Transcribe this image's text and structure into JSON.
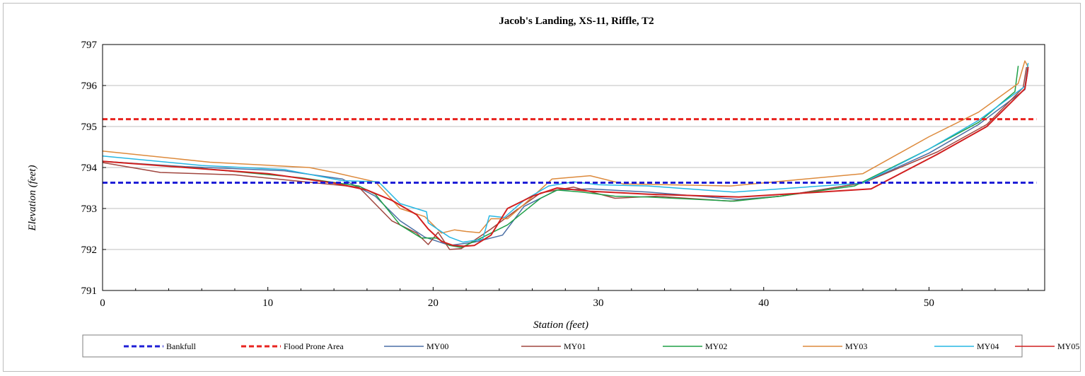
{
  "chart_data": {
    "type": "line",
    "title": "Jacob's Landing, XS-11, Riffle, T2",
    "xlabel": "Station (feet)",
    "ylabel": "Elevation (feet)",
    "xlim": [
      0,
      57
    ],
    "ylim": [
      791,
      797
    ],
    "xticks": [
      0,
      10,
      20,
      30,
      40,
      50
    ],
    "yticks": [
      791,
      792,
      793,
      794,
      795,
      796,
      797
    ],
    "grid": "horizontal",
    "legend_position": "bottom",
    "series": [
      {
        "name": "Bankfull",
        "color": "#1f1fd6",
        "dash": true,
        "width": 3,
        "x": [
          0,
          56.5
        ],
        "y": [
          793.63,
          793.63
        ]
      },
      {
        "name": "Flood Prone Area",
        "color": "#e8231f",
        "dash": true,
        "width": 3,
        "x": [
          0,
          56.5
        ],
        "y": [
          795.18,
          795.18
        ]
      },
      {
        "name": "MY00",
        "color": "#4a6fa5",
        "dash": false,
        "width": 1.5,
        "x": [
          0,
          5,
          11,
          14.5,
          16.5,
          18,
          19.5,
          21,
          22.5,
          24.2,
          25.5,
          27.5,
          29.5,
          33,
          38.5,
          41,
          46,
          50,
          53,
          55.8,
          56
        ],
        "y": [
          794.15,
          794.02,
          793.92,
          793.72,
          793.3,
          792.7,
          792.3,
          792.1,
          792.18,
          792.35,
          793.05,
          793.45,
          793.48,
          793.4,
          793.22,
          793.3,
          793.62,
          794.35,
          795.05,
          795.9,
          796.4
        ]
      },
      {
        "name": "MY01",
        "color": "#a0463f",
        "dash": false,
        "width": 1.5,
        "x": [
          0,
          3.5,
          8,
          13,
          15.5,
          17.5,
          19,
          19.7,
          20.3,
          21,
          21.7,
          22.4,
          23.5,
          25,
          26.5,
          28.5,
          31,
          33.5,
          38,
          41,
          46,
          50.5,
          53.5,
          55.7,
          55.9
        ],
        "y": [
          794.12,
          793.88,
          793.82,
          793.62,
          793.52,
          792.7,
          792.4,
          792.12,
          792.42,
          792.0,
          792.02,
          792.2,
          792.5,
          792.95,
          793.38,
          793.52,
          793.25,
          793.3,
          793.18,
          793.3,
          793.62,
          794.38,
          795.05,
          795.95,
          796.45
        ]
      },
      {
        "name": "MY02",
        "color": "#1ea047",
        "dash": false,
        "width": 1.5,
        "x": [
          0,
          6,
          12,
          15.5,
          16.5,
          18,
          19.3,
          20.2,
          21,
          21.7,
          22.5,
          24.5,
          26.5,
          27.5,
          29,
          31,
          33,
          38.2,
          41,
          45.5,
          50,
          53,
          55.2,
          55.4
        ],
        "y": [
          794.15,
          793.98,
          793.75,
          793.55,
          793.35,
          792.6,
          792.28,
          792.28,
          792.1,
          792.05,
          792.2,
          792.6,
          793.25,
          793.45,
          793.4,
          793.3,
          793.28,
          793.18,
          793.3,
          793.55,
          794.45,
          795.1,
          795.85,
          796.48
        ]
      },
      {
        "name": "MY03",
        "color": "#dd8a3c",
        "dash": false,
        "width": 1.5,
        "x": [
          0,
          6.5,
          12.5,
          14,
          16.5,
          18,
          19.5,
          20.5,
          21.3,
          22,
          22.8,
          23.5,
          24.5,
          25.5,
          27.2,
          29.5,
          31.5,
          38,
          46,
          50,
          53,
          55.4,
          55.8,
          56
        ],
        "y": [
          794.4,
          794.13,
          794.0,
          793.88,
          793.65,
          793.0,
          792.8,
          792.4,
          792.48,
          792.44,
          792.41,
          792.75,
          792.75,
          793.1,
          793.72,
          793.8,
          793.6,
          793.55,
          793.85,
          794.75,
          795.35,
          796.05,
          796.6,
          796.45
        ]
      },
      {
        "name": "MY04",
        "color": "#27b7e3",
        "dash": false,
        "width": 1.5,
        "x": [
          0,
          6,
          11,
          14.5,
          16.7,
          18,
          19.6,
          19.7,
          21,
          21.8,
          23,
          23.4,
          24.3,
          25.5,
          27,
          28.5,
          30,
          33,
          38.2,
          41,
          46,
          50,
          53,
          55.8,
          56
        ],
        "y": [
          794.28,
          794.05,
          793.95,
          793.68,
          793.65,
          793.12,
          792.92,
          792.65,
          792.3,
          792.18,
          792.25,
          792.82,
          792.78,
          793.2,
          793.55,
          793.65,
          793.58,
          793.55,
          793.4,
          793.48,
          793.62,
          794.45,
          795.15,
          795.98,
          796.55
        ]
      },
      {
        "name": "MY05",
        "color": "#d11f1f",
        "dash": false,
        "width": 2,
        "x": [
          0,
          5,
          10,
          14,
          16,
          17.5,
          19,
          19.7,
          20.5,
          21.2,
          21.9,
          22.5,
          23.5,
          24.5,
          26,
          27.5,
          29.5,
          33,
          38.5,
          46.5,
          50.5,
          53.5,
          55.8,
          56
        ],
        "y": [
          794.15,
          794.0,
          793.85,
          793.62,
          793.45,
          793.2,
          792.85,
          792.5,
          792.2,
          792.1,
          792.08,
          792.1,
          792.35,
          793.0,
          793.3,
          793.5,
          793.42,
          793.35,
          793.28,
          793.48,
          794.32,
          795.0,
          795.92,
          796.45
        ]
      }
    ]
  }
}
